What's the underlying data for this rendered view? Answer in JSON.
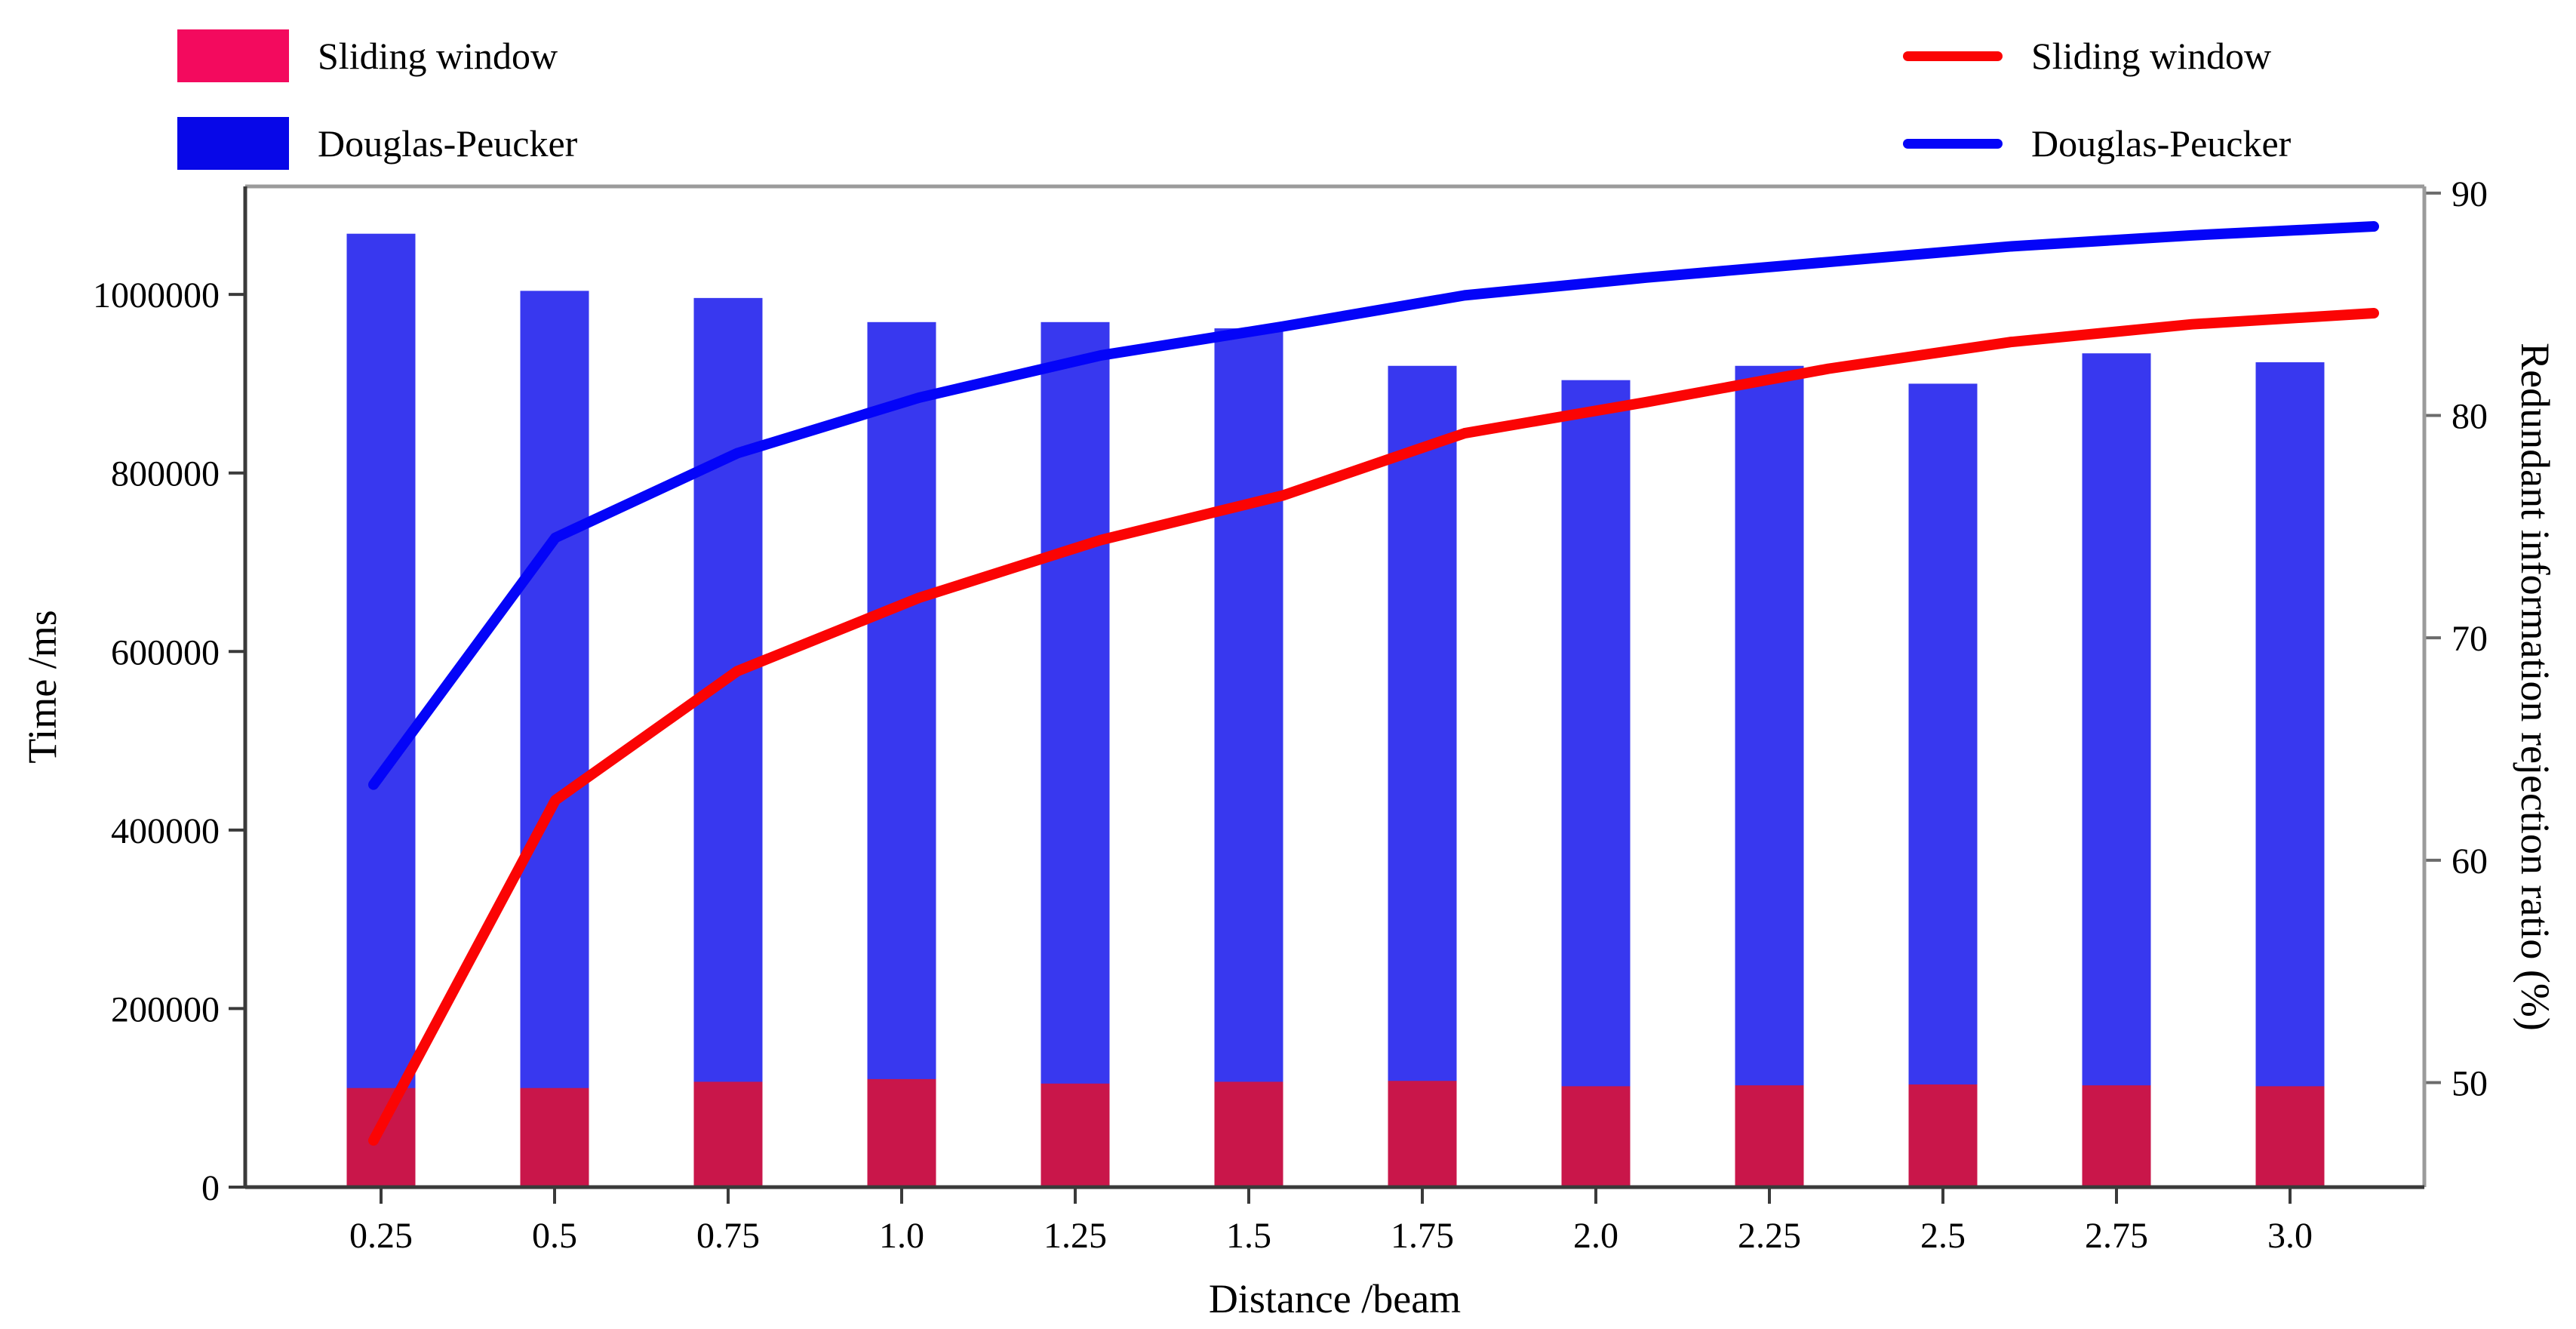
{
  "figure": {
    "background": "#ffffff"
  },
  "legend_left": {
    "items": [
      {
        "label": "Sliding window",
        "swatch_color": "#f30a5e",
        "series_type": "bar"
      },
      {
        "label": "Douglas-Peucker",
        "swatch_color": "#0707e8",
        "series_type": "bar"
      }
    ]
  },
  "legend_right": {
    "items": [
      {
        "label": "Sliding window",
        "swatch_color": "#fb0404",
        "series_type": "line"
      },
      {
        "label": "Douglas-Peucker",
        "swatch_color": "#0404f8",
        "series_type": "line"
      }
    ]
  },
  "chart_data": {
    "type": "bar+line dual y-axis",
    "categories": [
      "0.25",
      "0.5",
      "0.75",
      "1.0",
      "1.25",
      "1.5",
      "1.75",
      "2.0",
      "2.25",
      "2.5",
      "2.75",
      "3.0"
    ],
    "xlabel": "Distance /beam",
    "ylabel_left": "Time /ms",
    "ylabel_right": "Redundant information rejection ratio (%)",
    "ylim_left": [
      0,
      1121000
    ],
    "ylim_right": [
      45.3,
      90.3
    ],
    "yticks_left": [
      "0",
      "200000",
      "400000",
      "600000",
      "800000",
      "1000000"
    ],
    "yticks_right": [
      "50",
      "60",
      "70",
      "80",
      "90"
    ],
    "grid": false,
    "legend_positions": [
      "outside-upper-left",
      "outside-upper-right"
    ],
    "bar_series": [
      {
        "name": "Sliding window",
        "axis": "left",
        "color": "#c9164a",
        "values": [
          111000,
          111000,
          118000,
          121000,
          116000,
          118000,
          119000,
          113000,
          114000,
          115000,
          114000,
          113000
        ]
      },
      {
        "name": "Douglas-Peucker",
        "axis": "left",
        "color": "#3838ef",
        "values": [
          1068000,
          1004000,
          996000,
          969000,
          969000,
          962000,
          920000,
          904000,
          920000,
          900000,
          934000,
          924000
        ]
      }
    ],
    "line_series": [
      {
        "name": "Sliding window",
        "axis": "right",
        "color": "#fb0404",
        "values": [
          47.4,
          62.7,
          68.5,
          71.8,
          74.4,
          76.4,
          79.2,
          80.6,
          82.1,
          83.3,
          84.1,
          84.6
        ]
      },
      {
        "name": "Douglas-Peucker",
        "axis": "right",
        "color": "#0404f8",
        "values": [
          63.4,
          74.5,
          78.3,
          80.8,
          82.7,
          84.0,
          85.4,
          86.2,
          86.9,
          87.6,
          88.1,
          88.5
        ]
      }
    ]
  },
  "colors": {
    "spine_dark": "#3a3a3a",
    "spine_light": "#9b9b9b",
    "tick_right": "#6b6b6b",
    "text": "#000000"
  }
}
